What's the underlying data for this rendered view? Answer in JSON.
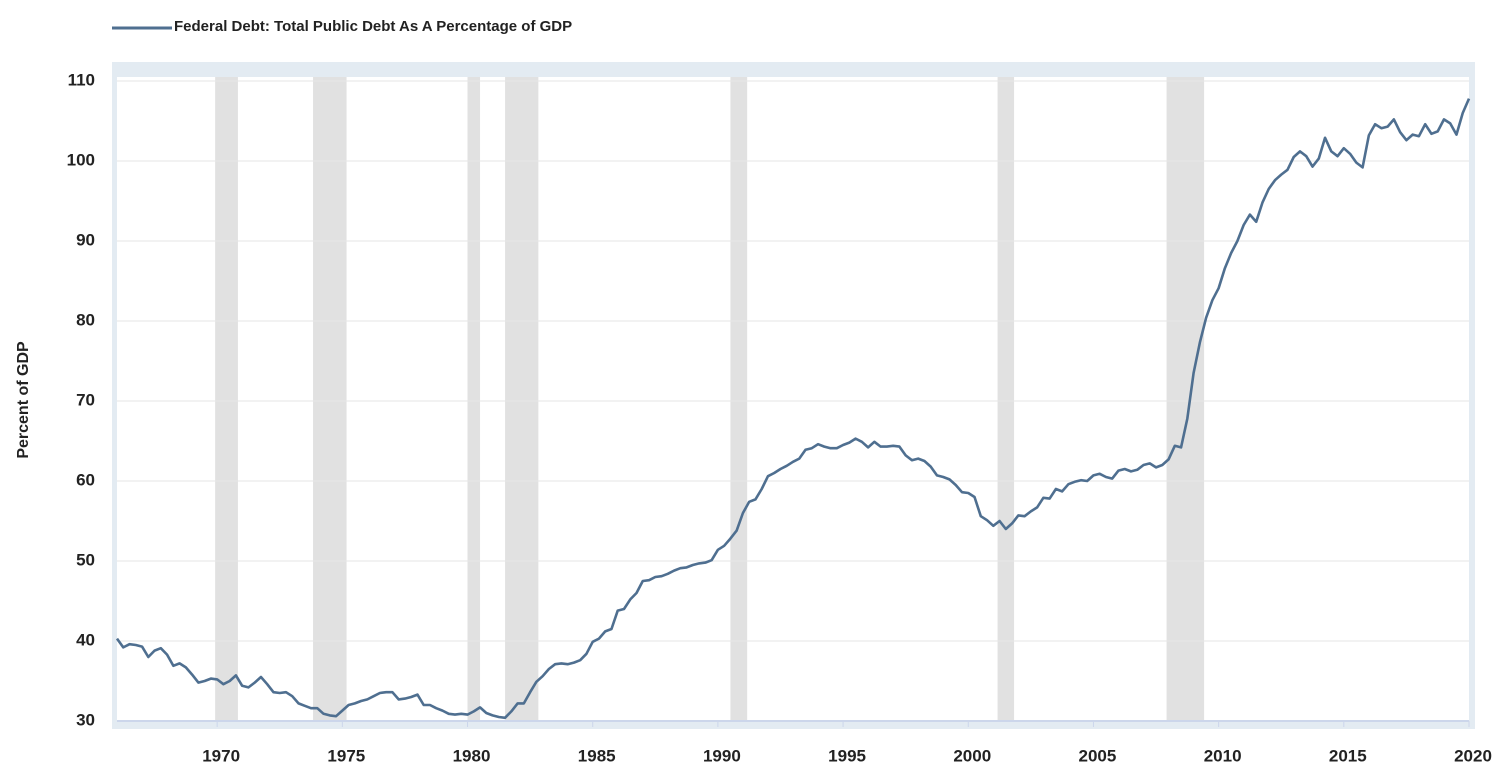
{
  "chart_data": {
    "type": "line",
    "y_label": "Percent of GDP",
    "xlim": [
      1966,
      2020
    ],
    "xticks": [
      1970,
      1975,
      1980,
      1985,
      1990,
      1995,
      2000,
      2005,
      2010,
      2015,
      2020
    ],
    "ylim": [
      30,
      110.5
    ],
    "yticks": [
      30,
      40,
      50,
      60,
      70,
      80,
      90,
      100,
      110
    ],
    "grid": true,
    "legend": "top-left",
    "recession_color": "#e1e1e1",
    "recessions": [
      [
        1969.92,
        1970.83
      ],
      [
        1973.83,
        1975.17
      ],
      [
        1980.0,
        1980.5
      ],
      [
        1981.5,
        1982.83
      ],
      [
        1990.5,
        1991.17
      ],
      [
        2001.17,
        2001.83
      ],
      [
        2007.92,
        2009.42
      ]
    ],
    "x": [
      1966,
      1966.25,
      1966.5,
      1966.75,
      1967,
      1967.25,
      1967.5,
      1967.75,
      1968,
      1968.25,
      1968.5,
      1968.75,
      1969,
      1969.25,
      1969.5,
      1969.75,
      1970,
      1970.25,
      1970.5,
      1970.75,
      1971,
      1971.25,
      1971.5,
      1971.75,
      1972,
      1972.25,
      1972.5,
      1972.75,
      1973,
      1973.25,
      1973.5,
      1973.75,
      1974,
      1974.25,
      1974.5,
      1974.75,
      1975,
      1975.25,
      1975.5,
      1975.75,
      1976,
      1976.25,
      1976.5,
      1976.75,
      1977,
      1977.25,
      1977.5,
      1977.75,
      1978,
      1978.25,
      1978.5,
      1978.75,
      1979,
      1979.25,
      1979.5,
      1979.75,
      1980,
      1980.25,
      1980.5,
      1980.75,
      1981,
      1981.25,
      1981.5,
      1981.75,
      1982,
      1982.25,
      1982.5,
      1982.75,
      1983,
      1983.25,
      1983.5,
      1983.75,
      1984,
      1984.25,
      1984.5,
      1984.75,
      1985,
      1985.25,
      1985.5,
      1985.75,
      1986,
      1986.25,
      1986.5,
      1986.75,
      1987,
      1987.25,
      1987.5,
      1987.75,
      1988,
      1988.25,
      1988.5,
      1988.75,
      1989,
      1989.25,
      1989.5,
      1989.75,
      1990,
      1990.25,
      1990.5,
      1990.75,
      1991,
      1991.25,
      1991.5,
      1991.75,
      1992,
      1992.25,
      1992.5,
      1992.75,
      1993,
      1993.25,
      1993.5,
      1993.75,
      1994,
      1994.25,
      1994.5,
      1994.75,
      1995,
      1995.25,
      1995.5,
      1995.75,
      1996,
      1996.25,
      1996.5,
      1996.75,
      1997,
      1997.25,
      1997.5,
      1997.75,
      1998,
      1998.25,
      1998.5,
      1998.75,
      1999,
      1999.25,
      1999.5,
      1999.75,
      2000,
      2000.25,
      2000.5,
      2000.75,
      2001,
      2001.25,
      2001.5,
      2001.75,
      2002,
      2002.25,
      2002.5,
      2002.75,
      2003,
      2003.25,
      2003.5,
      2003.75,
      2004,
      2004.25,
      2004.5,
      2004.75,
      2005,
      2005.25,
      2005.5,
      2005.75,
      2006,
      2006.25,
      2006.5,
      2006.75,
      2007,
      2007.25,
      2007.5,
      2007.75,
      2008,
      2008.25,
      2008.5,
      2008.75,
      2009,
      2009.25,
      2009.5,
      2009.75,
      2010,
      2010.25,
      2010.5,
      2010.75,
      2011,
      2011.25,
      2011.5,
      2011.75,
      2012,
      2012.25,
      2012.5,
      2012.75,
      2013,
      2013.25,
      2013.5,
      2013.75,
      2014,
      2014.25,
      2014.5,
      2014.75,
      2015,
      2015.25,
      2015.5,
      2015.75,
      2016,
      2016.25,
      2016.5,
      2016.75,
      2017,
      2017.25,
      2017.5,
      2017.75,
      2018,
      2018.25,
      2018.5,
      2018.75,
      2019,
      2019.25,
      2019.5,
      2019.75,
      2020
    ],
    "series": [
      {
        "name": "Federal Debt: Total Public Debt As A Percentage of GDP",
        "color": "#4f6f90",
        "values": [
          40.3,
          39.2,
          39.6,
          39.5,
          39.3,
          38.0,
          38.8,
          39.1,
          38.3,
          36.9,
          37.2,
          36.7,
          35.8,
          34.8,
          35.0,
          35.3,
          35.2,
          34.6,
          35.0,
          35.7,
          34.4,
          34.2,
          34.8,
          35.5,
          34.6,
          33.6,
          33.5,
          33.6,
          33.1,
          32.2,
          31.9,
          31.6,
          31.6,
          30.9,
          30.7,
          30.6,
          31.3,
          32.0,
          32.2,
          32.5,
          32.7,
          33.1,
          33.5,
          33.6,
          33.6,
          32.7,
          32.8,
          33.0,
          33.3,
          32.0,
          32.0,
          31.6,
          31.3,
          30.9,
          30.8,
          30.9,
          30.8,
          31.2,
          31.7,
          31.0,
          30.7,
          30.5,
          30.4,
          31.2,
          32.2,
          32.2,
          33.6,
          34.9,
          35.6,
          36.5,
          37.1,
          37.2,
          37.1,
          37.3,
          37.6,
          38.4,
          39.9,
          40.3,
          41.2,
          41.5,
          43.8,
          44.0,
          45.2,
          46.0,
          47.5,
          47.6,
          48.0,
          48.1,
          48.4,
          48.8,
          49.1,
          49.2,
          49.5,
          49.7,
          49.8,
          50.1,
          51.4,
          51.9,
          52.8,
          53.8,
          56.0,
          57.4,
          57.7,
          59.0,
          60.6,
          61.0,
          61.5,
          61.9,
          62.4,
          62.8,
          63.9,
          64.1,
          64.6,
          64.3,
          64.1,
          64.1,
          64.5,
          64.8,
          65.3,
          64.9,
          64.2,
          64.9,
          64.3,
          64.3,
          64.4,
          64.3,
          63.2,
          62.6,
          62.8,
          62.5,
          61.8,
          60.7,
          60.5,
          60.2,
          59.5,
          58.6,
          58.5,
          58.0,
          55.6,
          55.1,
          54.4,
          55.0,
          54.0,
          54.7,
          55.7,
          55.6,
          56.2,
          56.7,
          57.9,
          57.8,
          59.0,
          58.7,
          59.6,
          59.9,
          60.1,
          60.0,
          60.7,
          60.9,
          60.5,
          60.3,
          61.3,
          61.5,
          61.2,
          61.4,
          62.0,
          62.2,
          61.7,
          62.0,
          62.7,
          64.4,
          64.2,
          67.8,
          73.5,
          77.3,
          80.4,
          82.6,
          84.1,
          86.6,
          88.5,
          90.0,
          92.0,
          93.3,
          92.4,
          94.8,
          96.5,
          97.6,
          98.3,
          98.9,
          100.5,
          101.2,
          100.6,
          99.3,
          100.3,
          102.9,
          101.2,
          100.6,
          101.6,
          100.9,
          99.8,
          99.2,
          103.2,
          104.6,
          104.1,
          104.3,
          105.2,
          103.6,
          102.6,
          103.3,
          103.1,
          104.6,
          103.4,
          103.7,
          105.2,
          104.7,
          103.3,
          106.0,
          107.8
        ]
      }
    ]
  }
}
